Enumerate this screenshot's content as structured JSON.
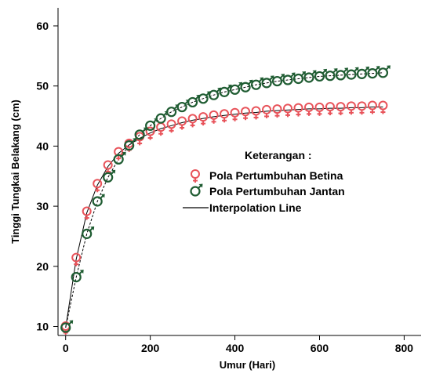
{
  "chart_data": {
    "type": "scatter",
    "xlabel": "Umur (Hari)",
    "ylabel": "Tinggi Tungkai Belakang (cm)",
    "xlim": [
      -18,
      840
    ],
    "ylim": [
      8.5,
      63
    ],
    "xticks": [
      0,
      200,
      400,
      600,
      800
    ],
    "yticks": [
      10,
      20,
      30,
      40,
      50,
      60
    ],
    "grid": false,
    "legend": {
      "title": "Keterangan :",
      "position": "center-right",
      "entries": [
        {
          "label": "Pola Pertumbuhan  Betina",
          "marker": "female-symbol",
          "color": "#e8535a"
        },
        {
          "label": "Pola Pertumbuhan  Jantan",
          "marker": "male-symbol",
          "color": "#1f5c32"
        },
        {
          "label": "Interpolation Line",
          "marker": "line",
          "color": "#000000"
        }
      ]
    },
    "series": [
      {
        "name": "Pola Pertumbuhan  Betina",
        "color": "#e8535a",
        "marker": "female-symbol",
        "x": [
          0,
          25,
          50,
          75,
          100,
          125,
          150,
          175,
          200,
          225,
          250,
          275,
          300,
          325,
          350,
          375,
          400,
          425,
          450,
          475,
          500,
          525,
          550,
          575,
          600,
          625,
          650,
          675,
          700,
          725,
          750
        ],
        "y": [
          9.8,
          21.2,
          28.9,
          33.5,
          36.6,
          38.8,
          40.2,
          41.3,
          42.2,
          42.9,
          43.4,
          43.9,
          44.3,
          44.6,
          44.9,
          45.1,
          45.3,
          45.5,
          45.6,
          45.8,
          45.9,
          46.0,
          46.1,
          46.2,
          46.2,
          46.3,
          46.3,
          46.4,
          46.4,
          46.5,
          46.5
        ]
      },
      {
        "name": "Pola Pertumbuhan  Jantan",
        "color": "#1f5c32",
        "marker": "male-symbol",
        "x": [
          0,
          25,
          50,
          75,
          100,
          125,
          150,
          175,
          200,
          225,
          250,
          275,
          300,
          325,
          350,
          375,
          400,
          425,
          450,
          475,
          500,
          525,
          550,
          575,
          600,
          625,
          650,
          675,
          700,
          725,
          750
        ],
        "y": [
          9.8,
          18.2,
          25.4,
          30.8,
          34.8,
          37.8,
          40.1,
          41.9,
          43.4,
          44.6,
          45.7,
          46.5,
          47.3,
          47.9,
          48.5,
          49.0,
          49.4,
          49.8,
          50.2,
          50.5,
          50.8,
          51.0,
          51.2,
          51.4,
          51.6,
          51.7,
          51.8,
          51.9,
          52.0,
          52.1,
          52.2
        ]
      }
    ]
  }
}
